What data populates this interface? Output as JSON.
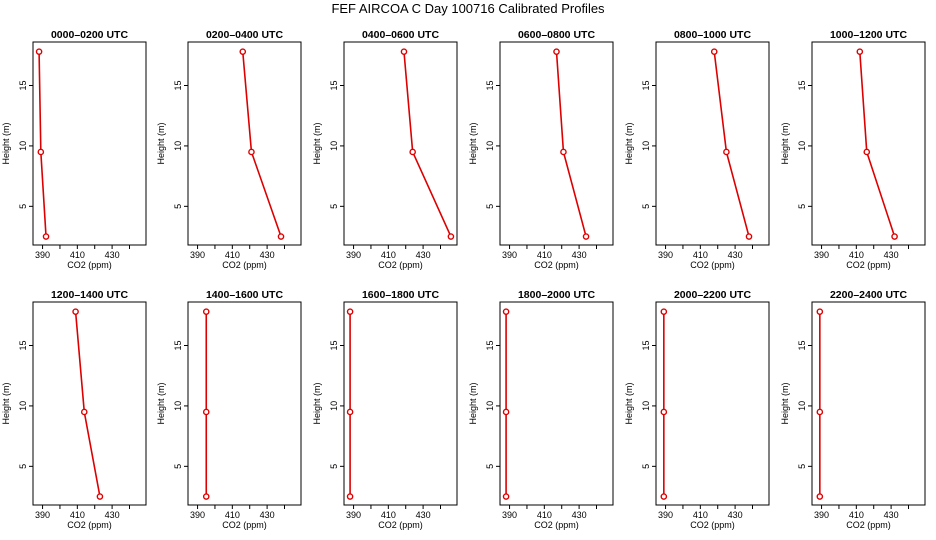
{
  "title": "FEF  AIRCOA C  Day 100716  Calibrated Profiles",
  "xlabel": "CO2 (ppm)",
  "ylabel": "Height (m)",
  "line_color": "#dd0000",
  "chart_data": [
    {
      "type": "line",
      "title": "0000–0200 UTC",
      "x": [
        388,
        389,
        392
      ],
      "y": [
        17.8,
        9.5,
        2.5
      ],
      "xticks": [
        "390",
        "410",
        "430"
      ],
      "yticks": [
        "5",
        "10",
        "15"
      ],
      "xlim": [
        384.5,
        449.5
      ],
      "ylim": [
        1.8,
        18.6
      ]
    },
    {
      "type": "line",
      "title": "0200–0400 UTC",
      "x": [
        416,
        421,
        438
      ],
      "y": [
        17.8,
        9.5,
        2.5
      ],
      "xticks": [
        "390",
        "410",
        "430"
      ],
      "yticks": [
        "5",
        "10",
        "15"
      ],
      "xlim": [
        384.5,
        449.5
      ],
      "ylim": [
        1.8,
        18.6
      ]
    },
    {
      "type": "line",
      "title": "0400–0600 UTC",
      "x": [
        419,
        424,
        446
      ],
      "y": [
        17.8,
        9.5,
        2.5
      ],
      "xticks": [
        "390",
        "410",
        "430"
      ],
      "yticks": [
        "5",
        "10",
        "15"
      ],
      "xlim": [
        384.5,
        449.5
      ],
      "ylim": [
        1.8,
        18.6
      ]
    },
    {
      "type": "line",
      "title": "0600–0800 UTC",
      "x": [
        417,
        421,
        434
      ],
      "y": [
        17.8,
        9.5,
        2.5
      ],
      "xticks": [
        "390",
        "410",
        "430"
      ],
      "yticks": [
        "5",
        "10",
        "15"
      ],
      "xlim": [
        384.5,
        449.5
      ],
      "ylim": [
        1.8,
        18.6
      ]
    },
    {
      "type": "line",
      "title": "0800–1000 UTC",
      "x": [
        418,
        425,
        438
      ],
      "y": [
        17.8,
        9.5,
        2.5
      ],
      "xticks": [
        "390",
        "410",
        "430"
      ],
      "yticks": [
        "5",
        "10",
        "15"
      ],
      "xlim": [
        384.5,
        449.5
      ],
      "ylim": [
        1.8,
        18.6
      ]
    },
    {
      "type": "line",
      "title": "1000–1200 UTC",
      "x": [
        412,
        416,
        432
      ],
      "y": [
        17.8,
        9.5,
        2.5
      ],
      "xticks": [
        "390",
        "410",
        "430"
      ],
      "yticks": [
        "5",
        "10",
        "15"
      ],
      "xlim": [
        384.5,
        449.5
      ],
      "ylim": [
        1.8,
        18.6
      ]
    },
    {
      "type": "line",
      "title": "1200–1400 UTC",
      "x": [
        409,
        414,
        423
      ],
      "y": [
        17.8,
        9.5,
        2.5
      ],
      "xticks": [
        "390",
        "410",
        "430"
      ],
      "yticks": [
        "5",
        "10",
        "15"
      ],
      "xlim": [
        384.5,
        449.5
      ],
      "ylim": [
        1.8,
        18.6
      ]
    },
    {
      "type": "line",
      "title": "1400–1600 UTC",
      "x": [
        395,
        395,
        395
      ],
      "y": [
        17.8,
        9.5,
        2.5
      ],
      "xticks": [
        "390",
        "410",
        "430"
      ],
      "yticks": [
        "5",
        "10",
        "15"
      ],
      "xlim": [
        384.5,
        449.5
      ],
      "ylim": [
        1.8,
        18.6
      ]
    },
    {
      "type": "line",
      "title": "1600–1800 UTC",
      "x": [
        388,
        388,
        388
      ],
      "y": [
        17.8,
        9.5,
        2.5
      ],
      "xticks": [
        "390",
        "410",
        "430"
      ],
      "yticks": [
        "5",
        "10",
        "15"
      ],
      "xlim": [
        384.5,
        449.5
      ],
      "ylim": [
        1.8,
        18.6
      ]
    },
    {
      "type": "line",
      "title": "1800–2000 UTC",
      "x": [
        388,
        388,
        388
      ],
      "y": [
        17.8,
        9.5,
        2.5
      ],
      "xticks": [
        "390",
        "410",
        "430"
      ],
      "yticks": [
        "5",
        "10",
        "15"
      ],
      "xlim": [
        384.5,
        449.5
      ],
      "ylim": [
        1.8,
        18.6
      ]
    },
    {
      "type": "line",
      "title": "2000–2200 UTC",
      "x": [
        389,
        389,
        389
      ],
      "y": [
        17.8,
        9.5,
        2.5
      ],
      "xticks": [
        "390",
        "410",
        "430"
      ],
      "yticks": [
        "5",
        "10",
        "15"
      ],
      "xlim": [
        384.5,
        449.5
      ],
      "ylim": [
        1.8,
        18.6
      ]
    },
    {
      "type": "line",
      "title": "2200–2400 UTC",
      "x": [
        389,
        389,
        389
      ],
      "y": [
        17.8,
        9.5,
        2.5
      ],
      "xticks": [
        "390",
        "410",
        "430"
      ],
      "yticks": [
        "5",
        "10",
        "15"
      ],
      "xlim": [
        384.5,
        449.5
      ],
      "ylim": [
        1.8,
        18.6
      ]
    }
  ]
}
